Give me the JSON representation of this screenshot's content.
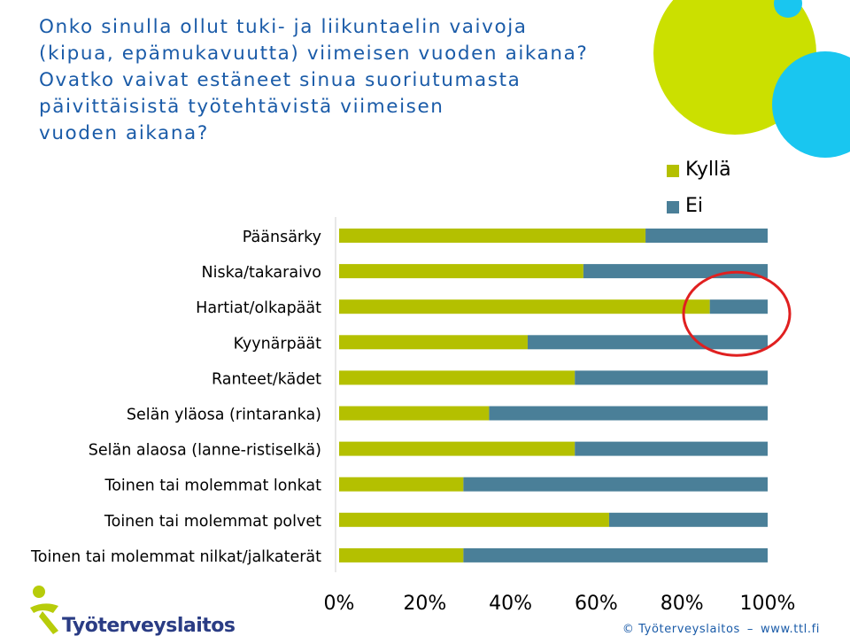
{
  "title_lines": [
    "Onko sinulla ollut tuki- ja liikuntaelin vaivoja",
    "(kipua, epämukavuutta) viimeisen vuoden aikana?",
    "Ovatko vaivat estäneet sinua suoriutumasta",
    "päivittäisistä työtehtävistä viimeisen",
    "vuoden aikana?"
  ],
  "colors": {
    "title": "#1a5ba8",
    "series_kylla": "#b4c000",
    "series_ei": "#4a7f98",
    "highlight_circle": "#e02020",
    "deco_lime": "#cbe000",
    "deco_cyan": "#19c6f0",
    "logo_lime": "#b7cc0a",
    "logo_navy": "#2a3c84"
  },
  "chart_data": {
    "type": "bar",
    "orientation": "horizontal",
    "stacked": "percent",
    "categories": [
      "Päänsärky",
      "Niska/takaraivo",
      "Hartiat/olkapäät",
      "Kyynärpäät",
      "Ranteet/kädet",
      "Selän yläosa (rintaranka)",
      "Selän alaosa (lanne-ristiselkä)",
      "Toinen tai molemmat lonkat",
      "Toinen tai molemmat polvet",
      "Toinen tai molemmat nilkat/jalkaterät"
    ],
    "series": [
      {
        "name": "Kyllä",
        "values": [
          71.5,
          57,
          86.5,
          44,
          55,
          35,
          55,
          29,
          63,
          29
        ]
      },
      {
        "name": "Ei",
        "values": [
          28.5,
          43,
          13.5,
          56,
          45,
          65,
          45,
          71,
          37,
          71
        ]
      }
    ],
    "x_ticks": [
      "0%",
      "20%",
      "40%",
      "60%",
      "80%",
      "100%"
    ],
    "xlim": [
      0,
      100
    ],
    "grid": false,
    "legend": {
      "position": "top-right",
      "labels": [
        "Kyllä",
        "Ei"
      ]
    },
    "annotation": {
      "type": "circle",
      "highlights_category": "Hartiat/olkapäät"
    }
  },
  "footer": {
    "copyright": "© Työterveyslaitos",
    "website": "www.ttl.fi"
  },
  "logo": {
    "text": "Työterveyslaitos",
    "icon": "person-figure-icon"
  }
}
